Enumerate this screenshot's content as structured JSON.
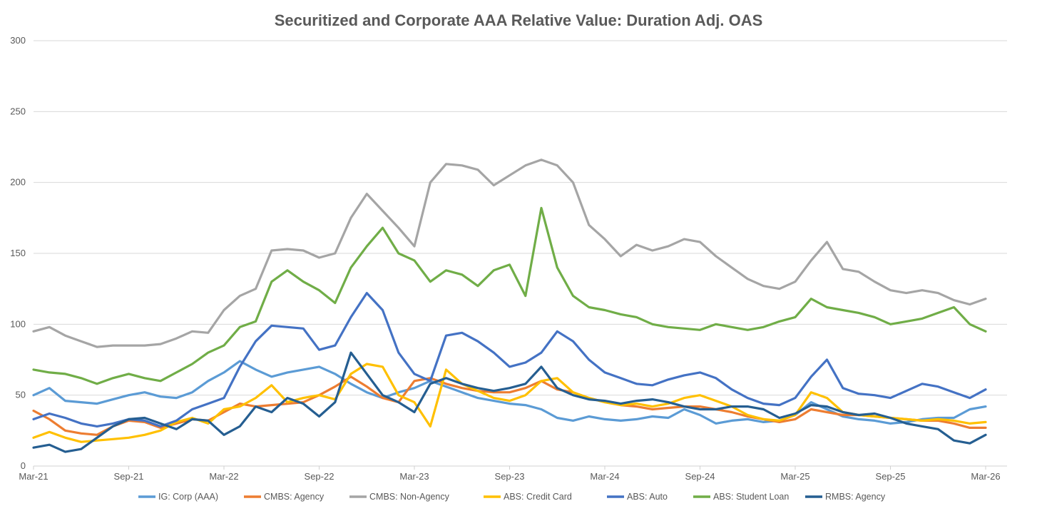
{
  "chart_data": {
    "type": "line",
    "title": "Securitized and Corporate AAA Relative Value: Duration Adj. OAS",
    "xlabel": "",
    "ylabel": "",
    "ylim": [
      0,
      300
    ],
    "yticks": [
      "0",
      "50",
      "100",
      "150",
      "200",
      "250",
      "300"
    ],
    "xticks": [
      "Mar-21",
      "Sep-21",
      "Mar-22",
      "Sep-22",
      "Mar-23",
      "Sep-23",
      "Mar-24",
      "Sep-24",
      "Mar-25",
      "Sep-25",
      "Mar-26"
    ],
    "grid": "horizontal",
    "legend": "bottom",
    "x": [
      "Mar-21",
      "Apr-21",
      "May-21",
      "Jun-21",
      "Jul-21",
      "Aug-21",
      "Sep-21",
      "Oct-21",
      "Nov-21",
      "Dec-21",
      "Jan-22",
      "Feb-22",
      "Mar-22",
      "Apr-22",
      "May-22",
      "Jun-22",
      "Jul-22",
      "Aug-22",
      "Sep-22",
      "Oct-22",
      "Nov-22",
      "Dec-22",
      "Jan-23",
      "Feb-23",
      "Mar-23",
      "Apr-23",
      "May-23",
      "Jun-23",
      "Jul-23",
      "Aug-23",
      "Sep-23",
      "Oct-23",
      "Nov-23",
      "Dec-23",
      "Jan-24",
      "Feb-24",
      "Mar-24",
      "Apr-24",
      "May-24",
      "Jun-24",
      "Jul-24",
      "Aug-24",
      "Sep-24",
      "Oct-24",
      "Nov-24",
      "Dec-24",
      "Jan-25",
      "Feb-25",
      "Mar-25",
      "Apr-25",
      "May-25",
      "Jun-25",
      "Jul-25",
      "Aug-25",
      "Sep-25",
      "Oct-25",
      "Nov-25",
      "Dec-25",
      "Jan-26",
      "Feb-26",
      "Mar-26"
    ],
    "series": [
      {
        "name": "IG: Corp (AAA)",
        "color": "#5b9bd5",
        "values": [
          50,
          55,
          46,
          45,
          44,
          47,
          50,
          52,
          49,
          48,
          52,
          60,
          66,
          74,
          68,
          63,
          66,
          68,
          70,
          65,
          58,
          52,
          48,
          52,
          55,
          60,
          56,
          52,
          48,
          46,
          44,
          43,
          40,
          34,
          32,
          35,
          33,
          32,
          33,
          35,
          34,
          40,
          36,
          30,
          32,
          33,
          31,
          32,
          36,
          45,
          40,
          35,
          33,
          32,
          30,
          31,
          33,
          34,
          34,
          40,
          42
        ]
      },
      {
        "name": "CMBS: Agency",
        "color": "#ed7d31",
        "values": [
          39,
          33,
          25,
          23,
          22,
          28,
          32,
          31,
          27,
          30,
          33,
          32,
          38,
          44,
          42,
          43,
          44,
          45,
          50,
          56,
          63,
          56,
          48,
          45,
          60,
          62,
          58,
          55,
          53,
          52,
          52,
          55,
          60,
          54,
          52,
          48,
          45,
          43,
          42,
          40,
          41,
          42,
          42,
          40,
          38,
          35,
          33,
          31,
          33,
          40,
          38,
          36,
          36,
          35,
          34,
          33,
          32,
          32,
          30,
          27,
          27
        ]
      },
      {
        "name": "CMBS: Non-Agency",
        "color": "#a5a5a5",
        "values": [
          95,
          98,
          92,
          88,
          84,
          85,
          85,
          85,
          86,
          90,
          95,
          94,
          110,
          120,
          125,
          152,
          153,
          152,
          147,
          150,
          175,
          192,
          180,
          168,
          155,
          200,
          213,
          212,
          209,
          198,
          205,
          212,
          216,
          212,
          200,
          170,
          160,
          148,
          156,
          152,
          155,
          160,
          158,
          148,
          140,
          132,
          127,
          125,
          130,
          145,
          158,
          139,
          137,
          130,
          124,
          122,
          124,
          122,
          117,
          114,
          118
        ]
      },
      {
        "name": "ABS: Credit Card",
        "color": "#ffc000",
        "values": [
          20,
          24,
          20,
          17,
          18,
          19,
          20,
          22,
          25,
          31,
          34,
          30,
          40,
          42,
          48,
          57,
          45,
          48,
          50,
          47,
          65,
          72,
          70,
          50,
          45,
          28,
          68,
          58,
          53,
          48,
          46,
          50,
          60,
          62,
          52,
          48,
          45,
          43,
          44,
          42,
          44,
          48,
          50,
          46,
          42,
          36,
          33,
          32,
          36,
          52,
          48,
          38,
          36,
          35,
          34,
          33,
          32,
          33,
          32,
          30,
          31
        ]
      },
      {
        "name": "ABS: Auto",
        "color": "#4472c4",
        "values": [
          33,
          37,
          34,
          30,
          28,
          30,
          33,
          32,
          28,
          32,
          40,
          44,
          48,
          70,
          88,
          99,
          98,
          97,
          82,
          85,
          105,
          122,
          110,
          80,
          65,
          60,
          92,
          94,
          88,
          80,
          70,
          73,
          80,
          95,
          88,
          75,
          66,
          62,
          58,
          57,
          61,
          64,
          66,
          62,
          54,
          48,
          44,
          43,
          48,
          63,
          75,
          55,
          51,
          50,
          48,
          53,
          58,
          56,
          52,
          48,
          54
        ]
      },
      {
        "name": "ABS: Student Loan",
        "color": "#70ad47",
        "values": [
          68,
          66,
          65,
          62,
          58,
          62,
          65,
          62,
          60,
          66,
          72,
          80,
          85,
          98,
          102,
          130,
          138,
          130,
          124,
          115,
          140,
          155,
          168,
          150,
          145,
          130,
          138,
          135,
          127,
          138,
          142,
          120,
          182,
          140,
          120,
          112,
          110,
          107,
          105,
          100,
          98,
          97,
          96,
          100,
          98,
          96,
          98,
          102,
          105,
          118,
          112,
          110,
          108,
          105,
          100,
          102,
          104,
          108,
          112,
          100,
          95
        ]
      },
      {
        "name": "RMBS: Agency",
        "color": "#255e91",
        "values": [
          13,
          15,
          10,
          12,
          20,
          28,
          33,
          34,
          30,
          26,
          33,
          32,
          22,
          28,
          42,
          38,
          48,
          44,
          35,
          45,
          80,
          65,
          50,
          45,
          38,
          58,
          62,
          58,
          55,
          53,
          55,
          58,
          70,
          55,
          50,
          47,
          46,
          44,
          46,
          47,
          45,
          42,
          40,
          40,
          42,
          42,
          40,
          34,
          37,
          43,
          42,
          38,
          36,
          37,
          34,
          30,
          28,
          26,
          18,
          16,
          22
        ]
      }
    ]
  }
}
